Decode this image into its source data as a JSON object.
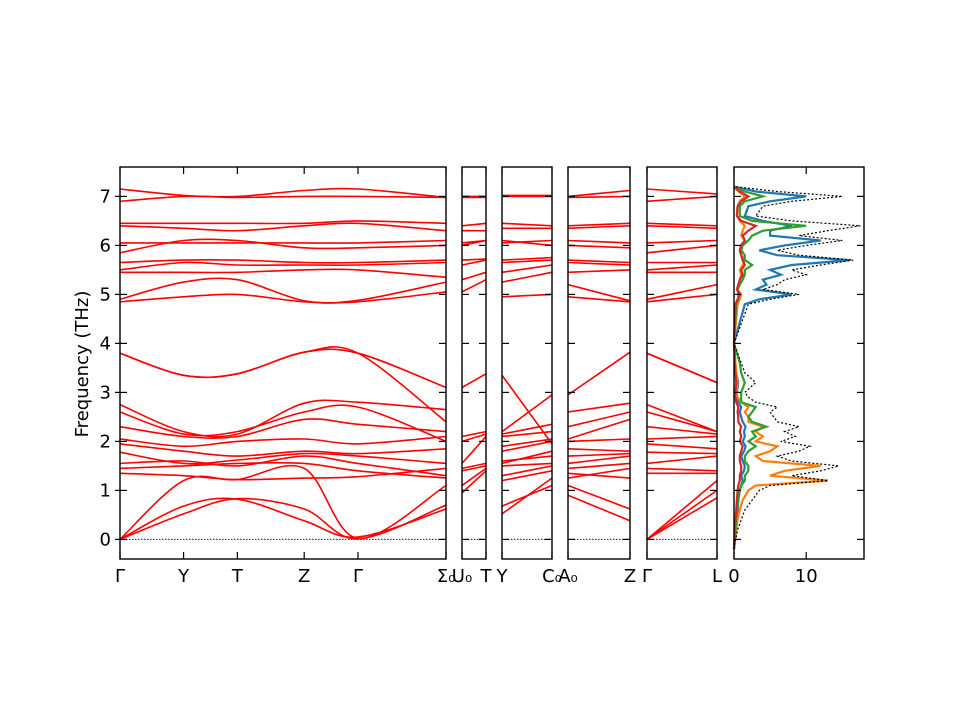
{
  "chart_data": {
    "type": "line",
    "ylabel": "Frequency (THz)",
    "ylim": [
      -0.4,
      7.6
    ],
    "yticks": [
      "0",
      "1",
      "2",
      "3",
      "4",
      "5",
      "6",
      "7"
    ],
    "grid": false,
    "colors": {
      "band": "#ff0000",
      "zero_line": "#0000ff",
      "dos_total": "#000000",
      "dos_partial": [
        "#1f77b4",
        "#ff7f0e",
        "#2ca02c",
        "#d62728"
      ]
    },
    "segments": [
      {
        "labels": [
          "Γ",
          "Y",
          "T",
          "Z",
          "Γ",
          "Σ0"
        ],
        "positions": [
          0,
          0.195,
          0.36,
          0.565,
          0.73,
          1.0
        ],
        "x_end_labels": [
          "Γ",
          "Y",
          "T",
          "Z",
          "Γ",
          "Σ₀"
        ],
        "bands": [
          [
            0.0,
            0.68,
            0.82,
            0.38,
            0.05,
            0.62
          ],
          [
            0.0,
            0.52,
            0.83,
            0.62,
            0.01,
            0.7
          ],
          [
            0.0,
            1.2,
            1.22,
            1.45,
            0.02,
            1.1
          ],
          [
            1.35,
            1.3,
            1.22,
            1.25,
            1.28,
            1.45
          ],
          [
            1.45,
            1.5,
            1.55,
            1.55,
            1.4,
            1.25
          ],
          [
            1.55,
            1.6,
            1.5,
            1.7,
            1.55,
            1.3
          ],
          [
            1.78,
            1.55,
            1.62,
            1.75,
            1.7,
            1.55
          ],
          [
            1.95,
            1.8,
            1.7,
            1.8,
            1.75,
            1.85
          ],
          [
            2.05,
            1.9,
            2.0,
            2.05,
            1.95,
            2.1
          ],
          [
            2.3,
            2.1,
            2.1,
            2.45,
            2.35,
            2.2
          ],
          [
            2.6,
            2.15,
            2.2,
            2.6,
            2.7,
            2.0
          ],
          [
            2.75,
            2.2,
            2.15,
            2.78,
            2.8,
            2.65
          ],
          [
            3.8,
            3.35,
            3.38,
            3.82,
            3.8,
            2.4
          ],
          [
            3.8,
            3.35,
            3.38,
            3.82,
            3.8,
            3.1
          ],
          [
            4.85,
            4.95,
            5.0,
            4.85,
            4.85,
            5.05
          ],
          [
            4.9,
            5.25,
            5.3,
            4.87,
            4.88,
            5.25
          ],
          [
            5.45,
            5.45,
            5.45,
            5.5,
            5.5,
            5.35
          ],
          [
            5.5,
            5.65,
            5.6,
            5.6,
            5.6,
            5.65
          ],
          [
            5.65,
            5.7,
            5.7,
            5.65,
            5.65,
            5.7
          ],
          [
            5.85,
            6.1,
            6.1,
            5.95,
            5.95,
            6.0
          ],
          [
            6.05,
            6.05,
            6.05,
            6.05,
            6.05,
            6.1
          ],
          [
            6.4,
            6.35,
            6.3,
            6.4,
            6.45,
            6.3
          ],
          [
            6.45,
            6.45,
            6.45,
            6.45,
            6.5,
            6.45
          ],
          [
            6.9,
            7.0,
            6.98,
            7.0,
            7.0,
            6.98
          ],
          [
            7.15,
            7.02,
            7.0,
            7.12,
            7.15,
            6.98
          ]
        ]
      },
      {
        "labels": [
          "U0",
          "T"
        ],
        "positions": [
          0,
          1.0
        ],
        "x_end_labels": [
          "U₀",
          "T"
        ],
        "bands": [
          [
            0.95,
            1.4
          ],
          [
            1.1,
            1.45
          ],
          [
            1.4,
            1.5
          ],
          [
            1.45,
            1.55
          ],
          [
            1.55,
            2.1
          ],
          [
            2.0,
            2.15
          ],
          [
            2.1,
            2.2
          ],
          [
            3.1,
            3.38
          ],
          [
            5.05,
            5.3
          ],
          [
            5.3,
            5.45
          ],
          [
            5.6,
            5.7
          ],
          [
            5.7,
            5.72
          ],
          [
            6.0,
            6.1
          ],
          [
            6.05,
            6.1
          ],
          [
            6.3,
            6.3
          ],
          [
            6.4,
            6.45
          ],
          [
            6.98,
            6.98
          ],
          [
            7.0,
            7.0
          ]
        ]
      },
      {
        "labels": [
          "Y",
          "C0"
        ],
        "positions": [
          0,
          1.0
        ],
        "x_end_labels": [
          "Y",
          "C₀"
        ],
        "bands": [
          [
            0.68,
            1.1
          ],
          [
            0.52,
            1.25
          ],
          [
            1.2,
            1.4
          ],
          [
            1.3,
            1.5
          ],
          [
            1.5,
            1.55
          ],
          [
            1.6,
            1.7
          ],
          [
            1.55,
            1.8
          ],
          [
            1.8,
            2.0
          ],
          [
            1.9,
            2.05
          ],
          [
            2.1,
            2.2
          ],
          [
            2.15,
            2.35
          ],
          [
            2.2,
            2.95
          ],
          [
            3.35,
            1.95
          ],
          [
            4.95,
            5.0
          ],
          [
            5.25,
            5.45
          ],
          [
            5.45,
            5.6
          ],
          [
            5.65,
            5.7
          ],
          [
            5.7,
            5.75
          ],
          [
            6.1,
            6.0
          ],
          [
            6.05,
            6.1
          ],
          [
            6.35,
            6.35
          ],
          [
            6.45,
            6.4
          ],
          [
            7.0,
            7.0
          ],
          [
            7.02,
            7.02
          ]
        ]
      },
      {
        "labels": [
          "A0",
          "Z"
        ],
        "positions": [
          0,
          1.0
        ],
        "x_end_labels": [
          "A₀",
          "Z"
        ],
        "bands": [
          [
            0.9,
            0.38
          ],
          [
            1.1,
            0.62
          ],
          [
            1.25,
            1.45
          ],
          [
            1.35,
            1.25
          ],
          [
            1.45,
            1.55
          ],
          [
            1.55,
            1.7
          ],
          [
            1.7,
            1.75
          ],
          [
            1.85,
            1.8
          ],
          [
            2.0,
            2.05
          ],
          [
            2.05,
            2.45
          ],
          [
            2.3,
            2.6
          ],
          [
            2.6,
            2.78
          ],
          [
            2.95,
            3.82
          ],
          [
            4.95,
            4.85
          ],
          [
            5.2,
            4.87
          ],
          [
            5.45,
            5.5
          ],
          [
            5.65,
            5.6
          ],
          [
            5.7,
            5.65
          ],
          [
            6.0,
            5.95
          ],
          [
            6.1,
            6.05
          ],
          [
            6.35,
            6.4
          ],
          [
            6.4,
            6.45
          ],
          [
            6.98,
            7.0
          ],
          [
            7.0,
            7.12
          ]
        ]
      },
      {
        "labels": [
          "Γ",
          "L"
        ],
        "positions": [
          0,
          1.0
        ],
        "x_end_labels": [
          "Γ",
          "L"
        ],
        "bands": [
          [
            0.0,
            0.85
          ],
          [
            0.0,
            1.0
          ],
          [
            0.0,
            1.2
          ],
          [
            1.35,
            1.35
          ],
          [
            1.45,
            1.4
          ],
          [
            1.55,
            1.7
          ],
          [
            1.78,
            1.75
          ],
          [
            1.95,
            1.85
          ],
          [
            2.05,
            2.1
          ],
          [
            2.3,
            2.15
          ],
          [
            2.6,
            2.2
          ],
          [
            2.75,
            2.2
          ],
          [
            3.8,
            3.2
          ],
          [
            3.8,
            3.2
          ],
          [
            4.85,
            5.0
          ],
          [
            4.9,
            5.2
          ],
          [
            5.45,
            5.45
          ],
          [
            5.5,
            5.6
          ],
          [
            5.65,
            5.65
          ],
          [
            5.85,
            6.0
          ],
          [
            6.05,
            6.1
          ],
          [
            6.4,
            6.35
          ],
          [
            6.45,
            6.4
          ],
          [
            6.9,
            7.0
          ],
          [
            7.15,
            7.05
          ]
        ]
      }
    ],
    "dos": {
      "xticks": [
        "0",
        "10"
      ],
      "xlim": [
        0,
        18
      ],
      "frequency": [
        -0.2,
        0.2,
        0.4,
        0.6,
        0.8,
        1.0,
        1.1,
        1.2,
        1.3,
        1.4,
        1.5,
        1.6,
        1.7,
        1.8,
        1.9,
        2.0,
        2.1,
        2.2,
        2.3,
        2.4,
        2.5,
        2.6,
        2.7,
        2.8,
        2.9,
        3.0,
        3.2,
        3.4,
        3.6,
        3.8,
        4.0,
        4.8,
        4.9,
        5.0,
        5.1,
        5.2,
        5.3,
        5.4,
        5.5,
        5.6,
        5.7,
        5.8,
        5.9,
        6.0,
        6.1,
        6.2,
        6.3,
        6.4,
        6.5,
        6.6,
        6.8,
        6.9,
        7.0,
        7.1,
        7.2
      ],
      "total": [
        0,
        0.5,
        1.0,
        1.5,
        2.5,
        3.5,
        5.0,
        13.0,
        8.0,
        12.0,
        14.5,
        8.0,
        6.0,
        9.0,
        10.5,
        6.5,
        8.5,
        7.0,
        9.0,
        6.0,
        5.5,
        5.0,
        6.0,
        3.0,
        2.0,
        1.5,
        3.0,
        1.5,
        1.0,
        0.5,
        0,
        2.0,
        5.0,
        9.0,
        4.0,
        6.0,
        7.0,
        10.0,
        8.0,
        12.0,
        16.5,
        9.0,
        6.0,
        10.0,
        15.0,
        9.0,
        13.0,
        17.5,
        8.0,
        3.0,
        4.0,
        8.0,
        15.0,
        6.0,
        0
      ],
      "series": [
        {
          "color": "#1f77b4",
          "values": [
            0,
            0.2,
            0.3,
            0.5,
            0.6,
            0.8,
            1.0,
            1.2,
            1.0,
            1.4,
            1.5,
            1.2,
            1.0,
            1.4,
            1.6,
            1.2,
            1.5,
            1.4,
            1.6,
            1.2,
            1.0,
            0.8,
            1.0,
            0.6,
            0.4,
            0.4,
            0.6,
            0.3,
            0.2,
            0.1,
            0,
            1.5,
            3.5,
            8.0,
            3.0,
            4.5,
            4.0,
            6.5,
            5.0,
            8.0,
            16.0,
            6.0,
            3.5,
            7.0,
            12.0,
            5.0,
            5.0,
            8.0,
            4.0,
            1.5,
            2.0,
            5.0,
            10.0,
            3.0,
            0
          ]
        },
        {
          "color": "#ff7f0e",
          "values": [
            0,
            0.3,
            0.5,
            0.8,
            1.2,
            2.0,
            3.0,
            13.0,
            5.0,
            7.0,
            12.0,
            4.0,
            3.0,
            5.0,
            6.0,
            3.0,
            4.0,
            3.0,
            4.0,
            2.0,
            2.0,
            1.5,
            2.0,
            1.0,
            0.5,
            0.3,
            0.5,
            0.3,
            0.2,
            0.1,
            0,
            0.5,
            0.8,
            1.0,
            0.5,
            0.8,
            0.8,
            1.0,
            0.8,
            1.2,
            1.5,
            1.0,
            0.8,
            1.0,
            1.5,
            1.0,
            1.2,
            1.5,
            0.8,
            0.4,
            0.5,
            0.8,
            1.5,
            0.6,
            0
          ]
        },
        {
          "color": "#2ca02c",
          "values": [
            0,
            0.2,
            0.3,
            0.4,
            0.6,
            0.8,
            1.0,
            1.5,
            1.5,
            2.0,
            2.0,
            1.5,
            1.5,
            2.0,
            3.0,
            2.0,
            3.0,
            2.5,
            4.5,
            2.5,
            2.0,
            2.5,
            3.0,
            1.0,
            1.0,
            1.0,
            1.5,
            1.0,
            0.8,
            0.4,
            0,
            0.3,
            0.6,
            0.6,
            0.5,
            0.8,
            1.2,
            1.5,
            1.5,
            2.5,
            1.5,
            1.5,
            1.0,
            1.2,
            2.0,
            2.5,
            4.0,
            10.0,
            2.5,
            0.8,
            0.8,
            1.5,
            4.0,
            1.5,
            0
          ]
        },
        {
          "color": "#d62728",
          "values": [
            0,
            0.1,
            0.2,
            0.3,
            0.4,
            0.5,
            0.6,
            0.8,
            0.8,
            1.0,
            1.0,
            0.8,
            0.8,
            1.0,
            1.2,
            0.8,
            1.0,
            0.8,
            1.0,
            0.6,
            0.6,
            0.5,
            0.6,
            0.3,
            0.2,
            0.2,
            0.3,
            0.2,
            0.1,
            0.1,
            0,
            0.2,
            0.5,
            0.8,
            0.4,
            0.6,
            0.8,
            1.2,
            1.0,
            1.5,
            1.2,
            1.0,
            0.8,
            1.0,
            1.5,
            1.2,
            2.0,
            3.0,
            1.0,
            0.4,
            0.5,
            1.0,
            2.0,
            0.8,
            0
          ]
        }
      ]
    }
  }
}
